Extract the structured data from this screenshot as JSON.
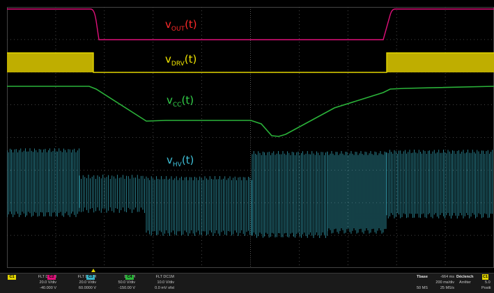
{
  "colors": {
    "ch1": "#e2d500",
    "ch2": "#e0107a",
    "ch3": "#3ab4c8",
    "ch4": "#2bb43a",
    "grid": "#5a5a5a",
    "background": "#000000"
  },
  "traces": {
    "vout": {
      "prefix": "v",
      "sub": "OUT",
      "suffix": "(t)"
    },
    "vdrv": {
      "prefix": "v",
      "sub": "DRV",
      "suffix": "(t)"
    },
    "vcc": {
      "prefix": "v",
      "sub": "CC",
      "suffix": "(t)"
    },
    "vhv": {
      "prefix": "v",
      "sub": "HV",
      "suffix": "(t)"
    }
  },
  "channels": [
    {
      "badge": "C1",
      "coupling": "FLT DC1M",
      "scale": "20.0 V/div",
      "offset": "-40.000 V"
    },
    {
      "badge": "C2",
      "coupling": "FLT DC1M",
      "scale": "20.0 V/div",
      "offset": "60.0000 V"
    },
    {
      "badge": "C3",
      "coupling": "DC1M",
      "scale": "50.0 V/div",
      "offset": "-150.00 V"
    },
    {
      "badge": "C4",
      "coupling": "FLT DC1M",
      "scale": "10.0 V/div",
      "offset": "0.0 mV ofst"
    }
  ],
  "timebase": {
    "title": "Tbase",
    "delay": "-664 ms",
    "scale": "200 ms/div",
    "samples": "50 MS",
    "rate": "25 MS/s"
  },
  "trigger": {
    "title": "Déclench",
    "source": "C1",
    "mode": "Arrêter",
    "level": "5.0",
    "slope": "Positi"
  }
}
